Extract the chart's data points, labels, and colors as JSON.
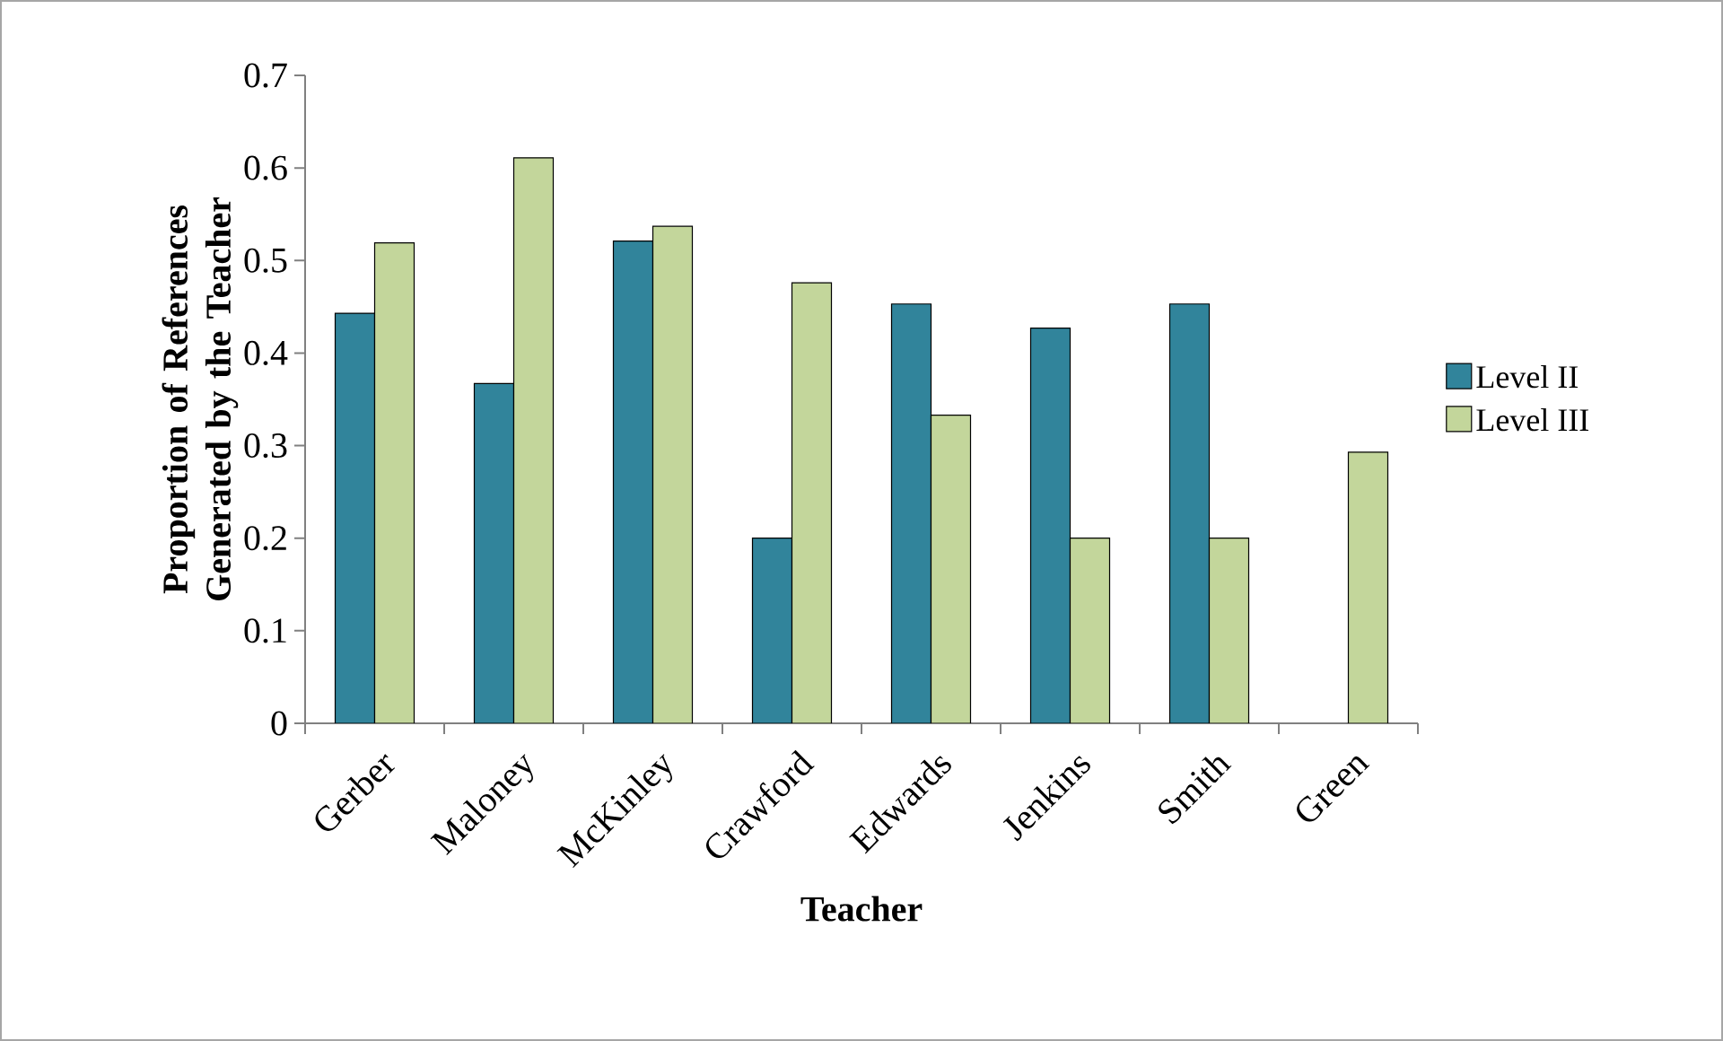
{
  "chart_data": {
    "type": "bar",
    "xlabel": "Teacher",
    "ylabel": "Proportion of References Generated by the Teacher",
    "categories": [
      "Gerber",
      "Maloney",
      "McKinley",
      "Crawford",
      "Edwards",
      "Jenkins",
      "Smith",
      "Green"
    ],
    "series": [
      {
        "name": "Level II",
        "color": "#31849b",
        "values": [
          0.443,
          0.367,
          0.521,
          0.2,
          0.453,
          0.427,
          0.453,
          null
        ]
      },
      {
        "name": "Level III",
        "color": "#c3d69b",
        "values": [
          0.519,
          0.611,
          0.537,
          0.476,
          0.333,
          0.2,
          0.2,
          0.293
        ]
      }
    ],
    "ylim": [
      0,
      0.7
    ],
    "yticks": [
      0,
      0.1,
      0.2,
      0.3,
      0.4,
      0.5,
      0.6,
      0.7
    ],
    "legend": "right",
    "grid": false
  }
}
